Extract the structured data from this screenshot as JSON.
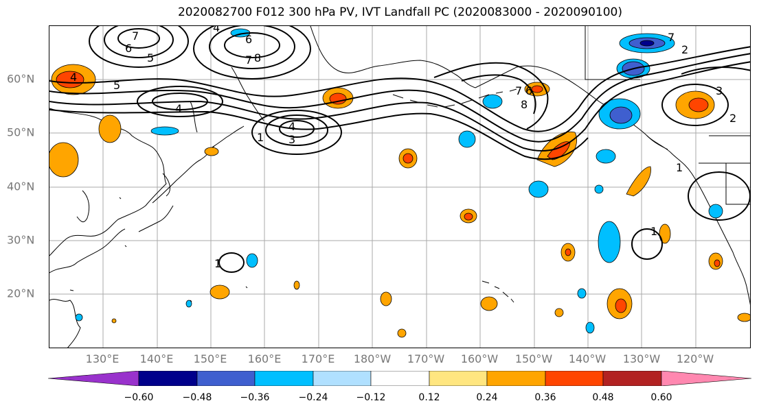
{
  "title": "2020082700 F012 300 hPa PV, IVT Landfall PC (2020083000 - 2020090100)",
  "latitude_labels": [
    "60°N",
    "50°N",
    "40°N",
    "30°N",
    "20°N"
  ],
  "longitude_labels": [
    "130°E",
    "140°E",
    "150°E",
    "160°E",
    "170°E",
    "180°W",
    "170°W",
    "160°W",
    "150°W",
    "140°W",
    "130°W",
    "120°W"
  ],
  "colorbar": {
    "ticks": [
      "−0.60",
      "−0.48",
      "−0.36",
      "−0.24",
      "−0.12",
      "0.12",
      "0.24",
      "0.36",
      "0.48",
      "0.60"
    ],
    "colors": [
      "#9932cc",
      "#00008b",
      "#3f5fcf",
      "#00bfff",
      "#b0e0ff",
      "#ffffff",
      "#ffe680",
      "#ffa500",
      "#ff4500",
      "#b22222",
      "#ff88b0"
    ]
  },
  "contour_labels": [
    "6",
    "7",
    "5",
    "4",
    "6",
    "7",
    "8",
    "4",
    "5",
    "4",
    "4",
    "3",
    "1",
    "7",
    "6",
    "8",
    "3",
    "2",
    "7",
    "2",
    "1",
    "1",
    "1"
  ],
  "colors": {
    "land_outline": "#000000",
    "grid": "#aaaaaa",
    "pv_contour": "#000000"
  }
}
